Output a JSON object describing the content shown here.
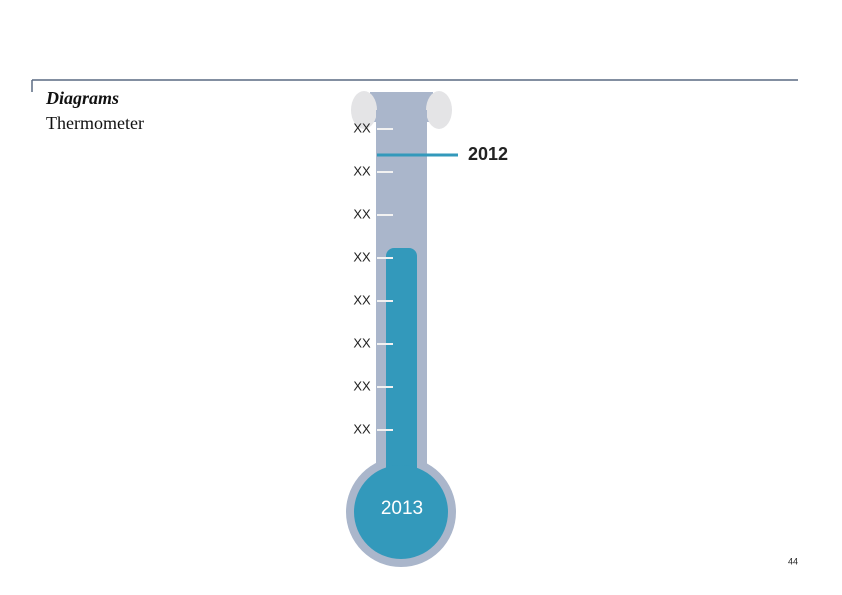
{
  "header": {
    "title": "Diagrams",
    "subtitle": "Thermometer"
  },
  "scale": {
    "labels": [
      "XX",
      "XX",
      "XX",
      "XX",
      "XX",
      "XX",
      "XX",
      "XX"
    ]
  },
  "marker": {
    "label": "2012"
  },
  "bulb": {
    "label": "2013"
  },
  "page_number": "44"
}
